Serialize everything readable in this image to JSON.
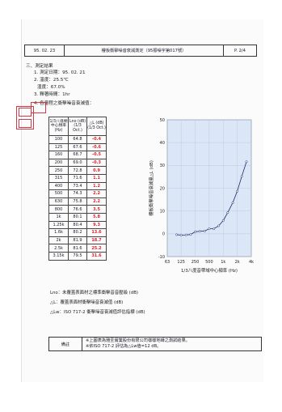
{
  "header": {
    "date": "95. 02. 23",
    "title": "樓板衝擊噪音衰減測定（95振噪字第017號）",
    "page": "P. 2/4"
  },
  "section": {
    "heading": "三、測定結果",
    "lines": [
      "1. 測定日期：95. 02. 21",
      "2. 溫度：25.5℃",
      "湿度：67.0%",
      "3. 釋著時間：1hr",
      "4. 各量程之衝擊噪音衰減值："
    ]
  },
  "table": {
    "headers": [
      "1/3八倍頻中心頻率 (Hz)",
      "Lno (dB) (1/3 Oct.)",
      "△L (dB) (1/3 Oct.)"
    ],
    "rows": [
      [
        "100",
        "64.8",
        "-0.4"
      ],
      [
        "125",
        "67.6",
        "-0.6"
      ],
      [
        "160",
        "68.7",
        "-0.5"
      ],
      [
        "200",
        "69.0",
        "-0.3"
      ],
      [
        "250",
        "72.8",
        "0.9"
      ],
      [
        "315",
        "71.6",
        "1.1"
      ],
      [
        "400",
        "73.4",
        "1.2"
      ],
      [
        "500",
        "74.3",
        "2.2"
      ],
      [
        "630",
        "75.8",
        "2.2"
      ],
      [
        "800",
        "76.6",
        "3.5"
      ],
      [
        "1k",
        "80.1",
        "5.8"
      ],
      [
        "1.25k",
        "80.4",
        "9.3"
      ],
      [
        "1.6k",
        "80.2",
        "13.6"
      ],
      [
        "2k",
        "81.9",
        "18.7"
      ],
      [
        "2.5k",
        "81.6",
        "25.2"
      ],
      [
        "3.15k",
        "79.5",
        "31.6"
      ]
    ]
  },
  "chart_data": {
    "type": "line",
    "xlabel": "1/3八度音帶域中心頻率 (Hz)",
    "ylabel": "樓板衝擊噪音衰減量△L (dB)",
    "x_ticks": [
      "63",
      "125",
      "250",
      "500",
      "1k",
      "2k",
      "4k"
    ],
    "ylim": [
      -10,
      50
    ],
    "y_ticks": [
      -10,
      0,
      10,
      20,
      30,
      40,
      50
    ],
    "grid": true,
    "x_scale": "log",
    "series": [
      {
        "x": [
          100,
          125,
          160,
          200,
          250,
          315,
          400,
          500,
          630,
          800,
          1000,
          1250,
          1600,
          2000,
          2500,
          3150
        ],
        "values": [
          -0.4,
          -0.6,
          -0.5,
          -0.3,
          0.9,
          1.1,
          1.2,
          2.2,
          2.2,
          3.5,
          5.8,
          9.3,
          13.6,
          18.7,
          25.2,
          31.6
        ]
      }
    ],
    "colors": {
      "line": "#1a2a6a",
      "grid": "#bccbe6",
      "plot_bg": "#dbe7f6"
    }
  },
  "legend": [
    "Lno：未覆蓋表面材之標準衝擊音音壓級 (dB)",
    "△L：覆蓋表面材衝擊噪音衰減值 (dB)",
    "△Lw：ISO 717-2 衝擊噪音衰減值評估指標 (dB)"
  ],
  "note": {
    "label": "備註",
    "lines": [
      "※上圖表為雅圣實業股份有限公司樣樣地磚之測試結果。",
      "※依ISO 717-2 評估為△Lw值=12 dB。"
    ]
  }
}
